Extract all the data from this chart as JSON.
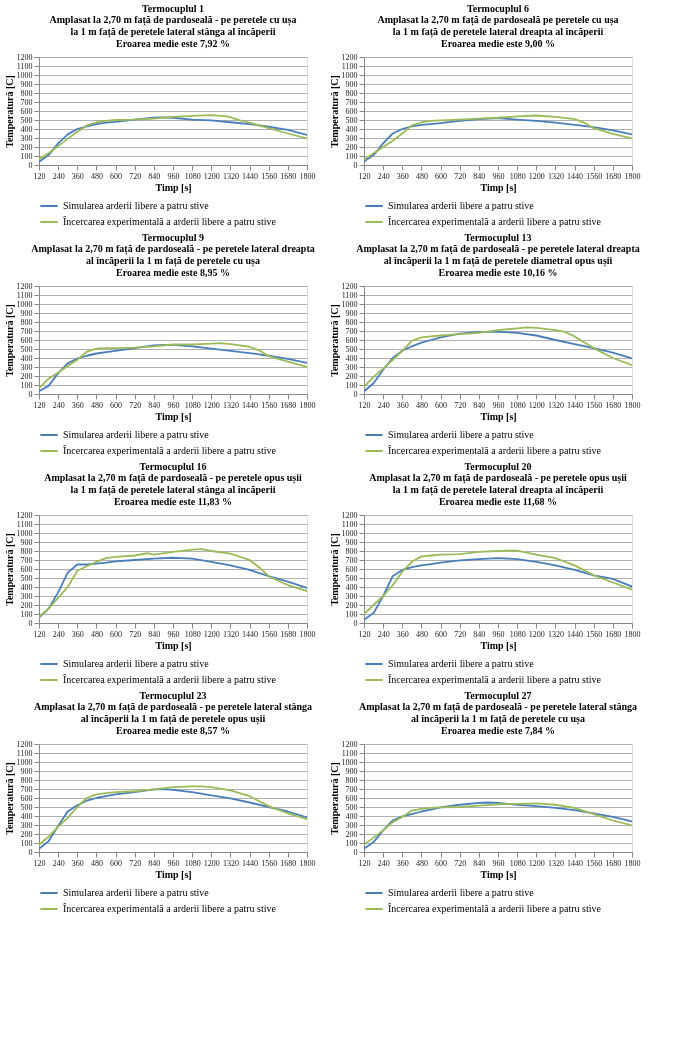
{
  "chart_data": [
    {
      "type": "line",
      "title": "Termocuplul 1",
      "subtitle": "Amplasat la 2,70 m față de pardoseală - pe peretele cu ușa\nla 1 m față de peretele lateral stânga al încăperii\nEroarea medie este 7,92 %",
      "xlabel": "Timp [s]",
      "ylabel": "Temperatură [C]",
      "xlim": [
        120,
        1800
      ],
      "ylim": [
        0,
        1200
      ],
      "xticks": [
        120,
        240,
        360,
        480,
        600,
        720,
        840,
        960,
        1080,
        1200,
        1320,
        1440,
        1560,
        1680,
        1800
      ],
      "yticks": [
        0,
        100,
        200,
        300,
        400,
        500,
        600,
        700,
        800,
        900,
        1000,
        1100,
        1200
      ],
      "grid": "y",
      "legend": "bottom",
      "series": [
        {
          "name": "Simularea arderii libere a patru stive",
          "color": "#4a7ebb",
          "x": [
            120,
            180,
            240,
            300,
            360,
            420,
            480,
            540,
            600,
            720,
            840,
            880,
            960,
            1080,
            1200,
            1320,
            1440,
            1560,
            1680,
            1800
          ],
          "values": [
            35,
            110,
            240,
            340,
            400,
            430,
            455,
            470,
            480,
            505,
            525,
            530,
            525,
            505,
            495,
            475,
            455,
            425,
            390,
            335
          ]
        },
        {
          "name": "Încercarea experimentală a arderii libere a patru stive",
          "color": "#9bbb59",
          "x": [
            120,
            180,
            240,
            300,
            360,
            420,
            480,
            540,
            600,
            720,
            840,
            960,
            1080,
            1200,
            1300,
            1380,
            1440,
            1560,
            1680,
            1800
          ],
          "values": [
            65,
            130,
            210,
            290,
            370,
            440,
            475,
            490,
            500,
            505,
            515,
            535,
            545,
            555,
            540,
            495,
            470,
            410,
            350,
            295
          ]
        }
      ]
    },
    {
      "type": "line",
      "title": "Termocuplul 6",
      "subtitle": "Amplasat la 2,70 m față de pardoseală   pe peretele cu ușa\nla 1 m față de peretele lateral dreapta al încăperii\nEroarea medie este 9,00 %",
      "xlabel": "Timp [s]",
      "ylabel": "Temperatură [C]",
      "xlim": [
        120,
        1800
      ],
      "ylim": [
        0,
        1200
      ],
      "xticks": [
        120,
        240,
        360,
        480,
        600,
        720,
        840,
        960,
        1080,
        1200,
        1320,
        1440,
        1560,
        1680,
        1800
      ],
      "yticks": [
        0,
        100,
        200,
        300,
        400,
        500,
        600,
        700,
        800,
        900,
        1000,
        1100,
        1200
      ],
      "grid": "y",
      "legend": "bottom",
      "series": [
        {
          "name": "Simularea arderii libere a patru stive",
          "color": "#4a7ebb",
          "x": [
            120,
            180,
            240,
            300,
            360,
            420,
            480,
            540,
            600,
            720,
            840,
            960,
            1080,
            1200,
            1320,
            1440,
            1560,
            1680,
            1800
          ],
          "values": [
            40,
            110,
            240,
            350,
            400,
            430,
            445,
            455,
            465,
            490,
            510,
            520,
            505,
            490,
            470,
            445,
            420,
            385,
            340
          ]
        },
        {
          "name": "Încercarea experimentală a arderii libere a patru stive",
          "color": "#9bbb59",
          "x": [
            120,
            180,
            240,
            300,
            360,
            420,
            480,
            540,
            600,
            720,
            840,
            960,
            1080,
            1200,
            1320,
            1440,
            1500,
            1560,
            1680,
            1800
          ],
          "values": [
            60,
            130,
            200,
            270,
            350,
            440,
            475,
            490,
            495,
            505,
            515,
            525,
            540,
            550,
            535,
            510,
            470,
            410,
            345,
            295
          ]
        }
      ]
    },
    {
      "type": "line",
      "title": "Termocuplul 9",
      "subtitle": "Amplasat la 2,70 m față de pardoseală - pe peretele lateral dreapta\nal încăperii la 1 m față de peretele cu ușa\nEroarea medie este 8,95 %",
      "xlabel": "Timp [s]",
      "ylabel": "Temperatură [C]",
      "xlim": [
        120,
        1800
      ],
      "ylim": [
        0,
        1200
      ],
      "xticks": [
        120,
        240,
        360,
        480,
        600,
        720,
        840,
        960,
        1080,
        1200,
        1320,
        1440,
        1560,
        1680,
        1800
      ],
      "yticks": [
        0,
        100,
        200,
        300,
        400,
        500,
        600,
        700,
        800,
        900,
        1000,
        1100,
        1200
      ],
      "grid": "y",
      "legend": "bottom",
      "series": [
        {
          "name": "Simularea arderii libere a patru stive",
          "color": "#4a7ebb",
          "x": [
            120,
            180,
            240,
            300,
            360,
            420,
            480,
            540,
            600,
            720,
            840,
            900,
            960,
            1080,
            1200,
            1320,
            1440,
            1560,
            1680,
            1800
          ],
          "values": [
            30,
            90,
            230,
            340,
            395,
            425,
            450,
            465,
            480,
            510,
            540,
            545,
            545,
            530,
            505,
            480,
            455,
            425,
            390,
            345
          ]
        },
        {
          "name": "Încercarea experimentală a arderii libere a patru stive",
          "color": "#9bbb59",
          "x": [
            120,
            180,
            240,
            300,
            360,
            420,
            480,
            540,
            600,
            720,
            840,
            960,
            1080,
            1200,
            1260,
            1320,
            1440,
            1500,
            1560,
            1680,
            1800
          ],
          "values": [
            65,
            170,
            240,
            310,
            380,
            470,
            505,
            510,
            510,
            515,
            530,
            550,
            550,
            560,
            565,
            555,
            525,
            485,
            420,
            360,
            300
          ]
        }
      ]
    },
    {
      "type": "line",
      "title": "Termocuplul 13",
      "subtitle": "Amplasat la 2,70 m față de pardoseală - pe peretele lateral dreapta\nal încăperii la 1 m față de peretele diametral opus ușii\nEroarea medie este 10,16 %",
      "xlabel": "Timp [s]",
      "ylabel": "Temperatură [C]",
      "xlim": [
        120,
        1800
      ],
      "ylim": [
        0,
        1200
      ],
      "xticks": [
        120,
        240,
        360,
        480,
        600,
        720,
        840,
        960,
        1080,
        1200,
        1320,
        1440,
        1560,
        1680,
        1800
      ],
      "yticks": [
        0,
        100,
        200,
        300,
        400,
        500,
        600,
        700,
        800,
        900,
        1000,
        1100,
        1200
      ],
      "grid": "y",
      "legend": "bottom",
      "series": [
        {
          "name": "Simularea arderii libere a patru stive",
          "color": "#4a7ebb",
          "x": [
            120,
            180,
            240,
            300,
            360,
            420,
            480,
            540,
            600,
            720,
            840,
            900,
            960,
            1080,
            1200,
            1320,
            1440,
            1560,
            1680,
            1800
          ],
          "values": [
            30,
            120,
            270,
            400,
            480,
            530,
            570,
            600,
            630,
            670,
            690,
            690,
            690,
            680,
            650,
            600,
            555,
            510,
            460,
            395
          ]
        },
        {
          "name": "Încercarea experimentală a arderii libere a patru stive",
          "color": "#9bbb59",
          "x": [
            120,
            180,
            240,
            300,
            360,
            420,
            480,
            540,
            600,
            720,
            840,
            960,
            1080,
            1140,
            1200,
            1320,
            1380,
            1440,
            1560,
            1680,
            1800
          ],
          "values": [
            80,
            190,
            280,
            380,
            480,
            590,
            630,
            640,
            650,
            665,
            680,
            710,
            730,
            740,
            735,
            710,
            690,
            640,
            510,
            400,
            320
          ]
        }
      ]
    },
    {
      "type": "line",
      "title": "Termocuplul 16",
      "subtitle": "Amplasat la 2,70 m față de pardoseală - pe peretele opus ușii\nla 1 m față de peretele lateral stânga al încăperii\nEroarea medie este 11,83 %",
      "xlabel": "Timp [s]",
      "ylabel": "Temperatură [C]",
      "xlim": [
        120,
        1800
      ],
      "ylim": [
        0,
        1200
      ],
      "xticks": [
        120,
        240,
        360,
        480,
        600,
        720,
        840,
        960,
        1080,
        1200,
        1320,
        1440,
        1560,
        1680,
        1800
      ],
      "yticks": [
        0,
        100,
        200,
        300,
        400,
        500,
        600,
        700,
        800,
        900,
        1000,
        1100,
        1200
      ],
      "grid": "y",
      "legend": "bottom",
      "series": [
        {
          "name": "Simularea arderii libere a patru stive",
          "color": "#4a7ebb",
          "x": [
            120,
            180,
            240,
            300,
            360,
            420,
            480,
            540,
            600,
            720,
            840,
            960,
            1080,
            1200,
            1320,
            1440,
            1560,
            1680,
            1800
          ],
          "values": [
            60,
            160,
            340,
            560,
            650,
            650,
            660,
            670,
            685,
            700,
            715,
            725,
            715,
            680,
            640,
            590,
            520,
            460,
            390
          ]
        },
        {
          "name": "Încercarea experimentală a arderii libere a patru stive",
          "color": "#9bbb59",
          "x": [
            120,
            180,
            240,
            300,
            360,
            420,
            480,
            540,
            600,
            720,
            800,
            840,
            960,
            1080,
            1140,
            1200,
            1320,
            1440,
            1500,
            1560,
            1680,
            1800
          ],
          "values": [
            70,
            160,
            280,
            400,
            580,
            630,
            680,
            720,
            735,
            750,
            775,
            760,
            790,
            815,
            820,
            800,
            770,
            700,
            620,
            520,
            420,
            355
          ]
        }
      ]
    },
    {
      "type": "line",
      "title": "Termocuplul 20",
      "subtitle": "Amplasat la 2,70 m față de pardoseală - pe peretele opus ușii\nla 1 m față de peretele lateral dreapta al încăperii\nEroarea medie este 11,68 %",
      "xlabel": "Timp [s]",
      "ylabel": "Temperatură [C]",
      "xlim": [
        120,
        1800
      ],
      "ylim": [
        0,
        1200
      ],
      "xticks": [
        120,
        240,
        360,
        480,
        600,
        720,
        840,
        960,
        1080,
        1200,
        1320,
        1440,
        1560,
        1680,
        1800
      ],
      "yticks": [
        0,
        100,
        200,
        300,
        400,
        500,
        600,
        700,
        800,
        900,
        1000,
        1100,
        1200
      ],
      "grid": "y",
      "legend": "bottom",
      "series": [
        {
          "name": "Simularea arderii libere a patru stive",
          "color": "#4a7ebb",
          "x": [
            120,
            180,
            240,
            300,
            360,
            420,
            480,
            540,
            600,
            720,
            840,
            960,
            1080,
            1200,
            1320,
            1440,
            1560,
            1680,
            1800
          ],
          "values": [
            35,
            110,
            300,
            520,
            590,
            620,
            640,
            655,
            670,
            695,
            710,
            720,
            710,
            680,
            640,
            590,
            530,
            490,
            405
          ]
        },
        {
          "name": "Încercarea experimentală a arderii libere a patru stive",
          "color": "#9bbb59",
          "x": [
            120,
            180,
            240,
            300,
            360,
            420,
            480,
            540,
            600,
            720,
            840,
            960,
            1080,
            1200,
            1320,
            1440,
            1560,
            1680,
            1800
          ],
          "values": [
            100,
            200,
            300,
            420,
            570,
            680,
            740,
            750,
            760,
            765,
            790,
            800,
            805,
            760,
            720,
            640,
            530,
            450,
            370
          ]
        }
      ]
    },
    {
      "type": "line",
      "title": "Termocuplul 23",
      "subtitle": "Amplasat la 2,70 m față de pardoseală - pe peretele lateral stânga\nal încăperii la 1 m față de peretele opus ușii\nEroarea medie este 8,57 %",
      "xlabel": "Timp [s]",
      "ylabel": "Temperatură [C]",
      "xlim": [
        120,
        1800
      ],
      "ylim": [
        0,
        1200
      ],
      "xticks": [
        120,
        240,
        360,
        480,
        600,
        720,
        840,
        960,
        1080,
        1200,
        1320,
        1440,
        1560,
        1680,
        1800
      ],
      "yticks": [
        0,
        100,
        200,
        300,
        400,
        500,
        600,
        700,
        800,
        900,
        1000,
        1100,
        1200
      ],
      "grid": "y",
      "legend": "bottom",
      "series": [
        {
          "name": "Simularea arderii libere a patru stive",
          "color": "#4a7ebb",
          "x": [
            120,
            180,
            240,
            300,
            360,
            420,
            480,
            540,
            600,
            720,
            840,
            900,
            960,
            1080,
            1200,
            1320,
            1440,
            1560,
            1680,
            1800
          ],
          "values": [
            35,
            120,
            290,
            450,
            520,
            570,
            600,
            620,
            640,
            665,
            695,
            700,
            690,
            665,
            630,
            595,
            550,
            500,
            450,
            385
          ]
        },
        {
          "name": "Încercarea experimentală a arderii libere a patru stive",
          "color": "#9bbb59",
          "x": [
            120,
            180,
            240,
            300,
            360,
            420,
            480,
            540,
            600,
            720,
            840,
            960,
            1080,
            1140,
            1200,
            1320,
            1440,
            1560,
            1680,
            1800
          ],
          "values": [
            80,
            170,
            280,
            380,
            500,
            600,
            640,
            655,
            665,
            675,
            695,
            720,
            730,
            730,
            720,
            685,
            620,
            510,
            430,
            365
          ]
        }
      ]
    },
    {
      "type": "line",
      "title": "Termocuplul 27",
      "subtitle": "Amplasat la 2,70 m față de pardoseală - pe peretele lateral stânga\nal încăperii la 1 m față de peretele cu ușa\nEroarea medie este 7,84 %",
      "xlabel": "Timp [s]",
      "ylabel": "Temperatură [C]",
      "xlim": [
        120,
        1800
      ],
      "ylim": [
        0,
        1200
      ],
      "xticks": [
        120,
        240,
        360,
        480,
        600,
        720,
        840,
        960,
        1080,
        1200,
        1320,
        1440,
        1560,
        1680,
        1800
      ],
      "yticks": [
        0,
        100,
        200,
        300,
        400,
        500,
        600,
        700,
        800,
        900,
        1000,
        1100,
        1200
      ],
      "grid": "y",
      "legend": "bottom",
      "series": [
        {
          "name": "Simularea arderii libere a patru stive",
          "color": "#4a7ebb",
          "x": [
            120,
            180,
            240,
            300,
            360,
            420,
            480,
            540,
            600,
            720,
            840,
            900,
            960,
            1080,
            1200,
            1320,
            1440,
            1560,
            1680,
            1800
          ],
          "values": [
            35,
            110,
            240,
            350,
            395,
            420,
            450,
            470,
            495,
            525,
            545,
            550,
            545,
            525,
            510,
            490,
            465,
            430,
            390,
            340
          ]
        },
        {
          "name": "Încercarea experimentală a arderii libere a patru stive",
          "color": "#9bbb59",
          "x": [
            120,
            180,
            240,
            300,
            360,
            420,
            480,
            540,
            600,
            720,
            840,
            960,
            1080,
            1200,
            1320,
            1440,
            1560,
            1680,
            1800
          ],
          "values": [
            80,
            160,
            240,
            330,
            390,
            460,
            480,
            490,
            495,
            500,
            515,
            530,
            535,
            540,
            525,
            490,
            420,
            350,
            295
          ]
        }
      ]
    }
  ]
}
